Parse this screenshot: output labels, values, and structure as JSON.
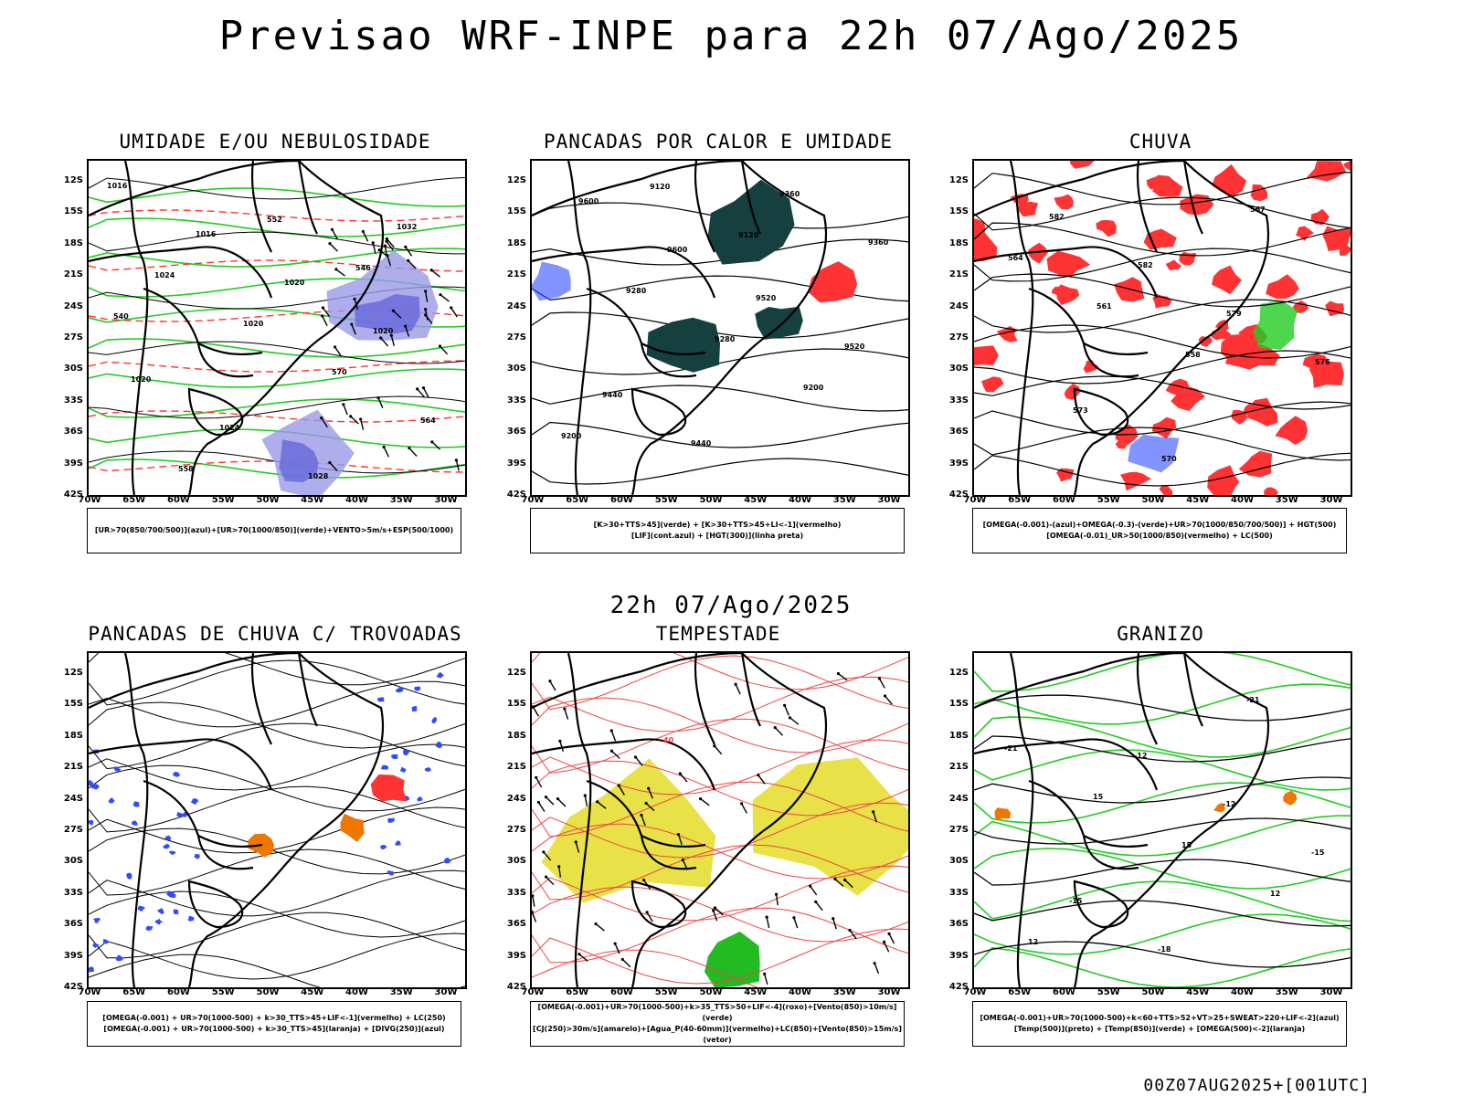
{
  "main_title": "Previsao WRF-INPE  para 22h 07/Ago/2025",
  "mid_title": "22h 07/Ago/2025",
  "footer": "00Z07AUG2025+[001UTC]",
  "y_ticks": [
    "12S",
    "15S",
    "18S",
    "21S",
    "24S",
    "27S",
    "30S",
    "33S",
    "36S",
    "39S",
    "42S"
  ],
  "x_ticks": [
    "70W",
    "65W",
    "60W",
    "55W",
    "50W",
    "45W",
    "40W",
    "35W",
    "30W"
  ],
  "panels": [
    {
      "title": "UMIDADE E/OU NEBULOSIDADE",
      "legend": [
        "[UR>70(850/700/500)](azul)+[UR>70(1000/850)](verde)+VENTO>5m/s+ESP(500/1000)"
      ],
      "labels": [
        "1016",
        "1016",
        "1020",
        "1020",
        "1020",
        "1024",
        "1028",
        "1032",
        "1024",
        "1020",
        "570",
        "564",
        "558",
        "552",
        "546",
        "540"
      ]
    },
    {
      "title": "PANCADAS POR CALOR E UMIDADE",
      "legend": [
        "[K>30+TTS>45](verde) + [K>30+TTS>45+LI<-1](vermelho)",
        "[LIF](cont.azul) + [HGT(300)](linha preta)"
      ],
      "labels": [
        "9600",
        "9600",
        "9520",
        "9520",
        "9440",
        "9440",
        "9360",
        "9360",
        "9280",
        "9280",
        "9200",
        "9200",
        "9120",
        "9120"
      ]
    },
    {
      "title": "CHUVA",
      "legend": [
        "[OMEGA(-0.001)-(azul)+OMEGA(-0.3)-(verde)+UR>70(1000/850/700/500)] + HGT(500)",
        "[OMEGA(-0.01)_UR>50(1000/850)(vermelho) + LC(500)"
      ],
      "labels": [
        "582",
        "582",
        "579",
        "576",
        "573",
        "570",
        "567",
        "564",
        "561",
        "558"
      ]
    },
    {
      "title": "PANCADAS DE CHUVA C/ TROVOADAS",
      "legend": [
        "[OMEGA(-0.001) + UR>70(1000-500) + k>30_TTS>45+LIF<-1](vermelho) + LC(250)",
        "[OMEGA(-0.001) + UR>70(1000-500) + k>30_TTS>45](laranja) + [DIVG(250)](azul)"
      ],
      "labels": []
    },
    {
      "title": "TEMPESTADE",
      "legend": [
        "[OMEGA(-0.001)+UR>70(1000-500)+k>35_TTS>50+LIF<-4](roxo)+[Vento(850)>10m/s](verde)",
        "[CJ(250)>30m/s](amarelo)+[Agua_P(40-60mm)](vermelho)+LC(850)+[Vento(850)>15m/s](vetor)"
      ],
      "labels": [
        "40"
      ]
    },
    {
      "title": "GRANIZO",
      "legend": [
        "[OMEGA(-0.001)+UR>70(1000-500)+k<60+TTS>52+VT>25+SWEAT>220+LIF<-2](azul)",
        "[Temp(500)](preto) + [Temp(850)](verde) + [OMEGA(500)<-2](laranja)"
      ],
      "labels": [
        "-12",
        "-12",
        "-15",
        "-15",
        "-18",
        "-21",
        "-21",
        "15",
        "15",
        "12",
        "12"
      ]
    }
  ],
  "colors": {
    "blue": "#2f4cff",
    "green": "#22cc22",
    "red": "#ff3333",
    "orange": "#ee7700",
    "yellow": "#e6de33",
    "darkteal": "#163f3f",
    "lavender": "#9a9ae8",
    "purple": "#6b6bdc"
  }
}
